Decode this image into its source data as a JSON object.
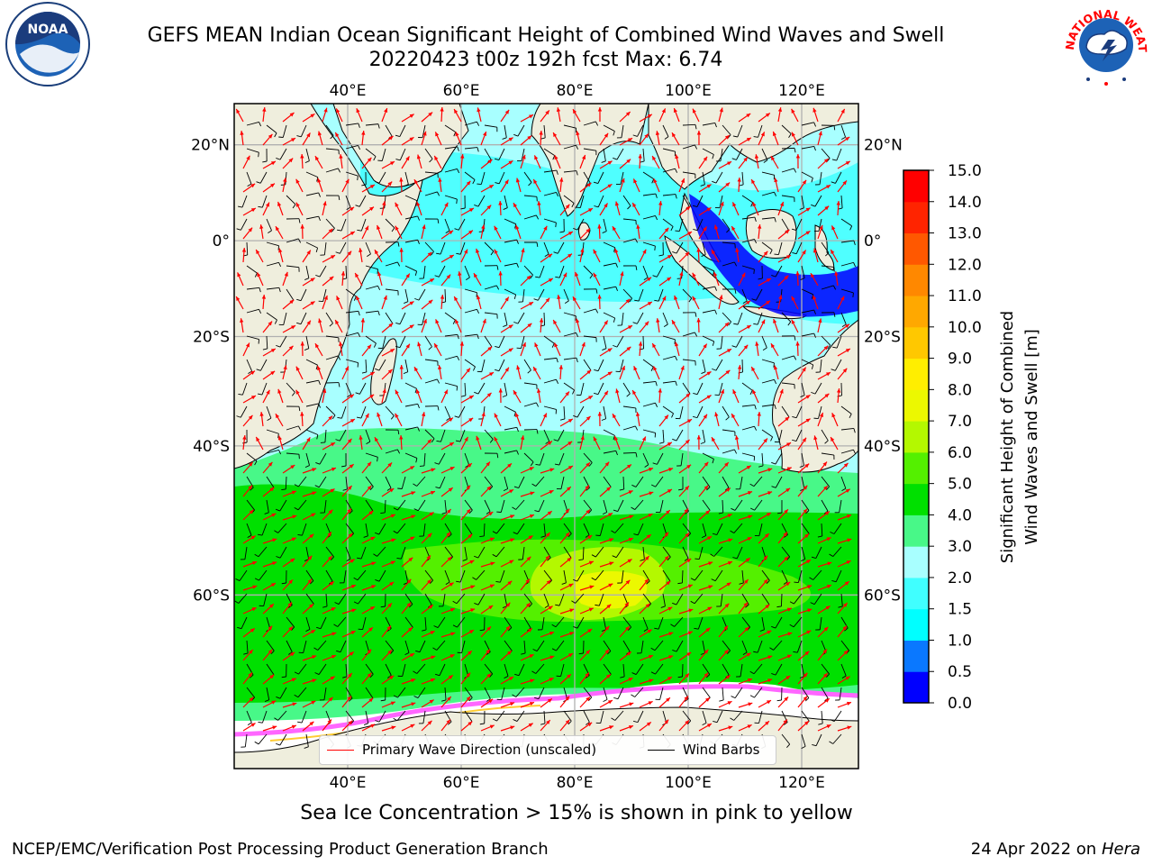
{
  "header": {
    "title_line1": "GEFS MEAN Indian Ocean Significant Height of Combined Wind Waves and Swell",
    "title_line2": "20220423 t00z 192h fcst   Max: 6.74"
  },
  "logos": {
    "left": {
      "name": "noaa-logo",
      "text": "NOAA"
    },
    "right": {
      "name": "nws-logo",
      "text": "NATIONAL WEATHER SERVICE"
    }
  },
  "map": {
    "lon_range": [
      20,
      130
    ],
    "lat_range": [
      -74,
      28
    ],
    "lon_ticks": [
      "40°E",
      "60°E",
      "80°E",
      "100°E",
      "120°E"
    ],
    "lon_tick_values": [
      40,
      60,
      80,
      100,
      120
    ],
    "lat_ticks": [
      "20°N",
      "0°",
      "20°S",
      "40°S",
      "60°S"
    ],
    "lat_tick_values": [
      20,
      0,
      -20,
      -40,
      -60
    ],
    "grid": true
  },
  "legend": {
    "wave_label": "Primary Wave Direction (unscaled)",
    "wind_label": "Wind Barbs",
    "wave_color": "#ff0000",
    "wind_color": "#000000"
  },
  "colorbar": {
    "label": "Significant Height of Combined Wind Waves and Swell [m]",
    "label_line1": "Significant Height of Combined",
    "label_line2": "Wind Waves and Swell [m]",
    "ticks": [
      "0.0",
      "0.5",
      "1.0",
      "1.5",
      "2.0",
      "3.0",
      "4.0",
      "5.0",
      "6.0",
      "7.0",
      "8.0",
      "9.0",
      "10.0",
      "11.0",
      "12.0",
      "13.0",
      "14.0",
      "15.0"
    ],
    "colors": [
      "#0000ff",
      "#0a78ff",
      "#00ffff",
      "#40ffff",
      "#a8ffff",
      "#48f888",
      "#00e000",
      "#54f000",
      "#b4f800",
      "#ecf800",
      "#ffee00",
      "#ffc800",
      "#ffa800",
      "#ff8800",
      "#ff5800",
      "#ff2400",
      "#ff0000"
    ]
  },
  "caption": "Sea Ice Concentration > 15% is shown in pink to yellow",
  "footer": {
    "left": "NCEP/EMC/Verification Post Processing Product Generation Branch",
    "right_date": "24 Apr 2022 on",
    "right_host": "Hera"
  },
  "colors": {
    "land": "#efeedd",
    "ice_free_southern": "#ffffff",
    "gridline": "#b0b0b0",
    "ice_pink": "#ff66ff",
    "ice_yellow": "#ffcc33"
  }
}
